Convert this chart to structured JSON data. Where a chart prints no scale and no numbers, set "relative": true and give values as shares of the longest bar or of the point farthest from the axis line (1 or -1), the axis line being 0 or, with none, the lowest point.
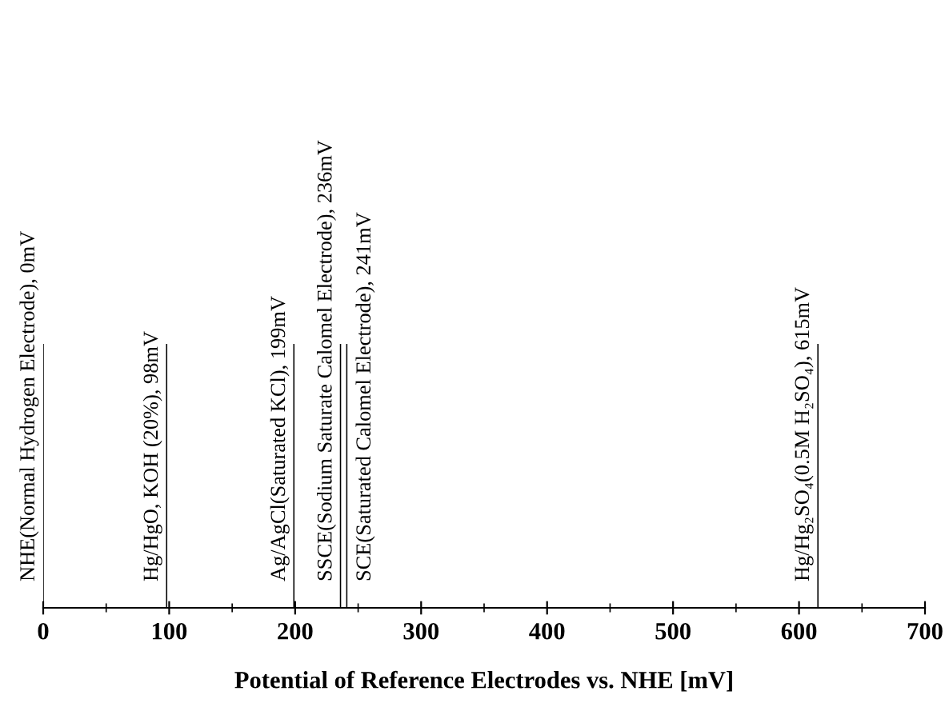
{
  "chart_data": {
    "type": "bar",
    "xlabel": "Potential of Reference Electrodes vs. NHE [mV]",
    "xlim": [
      0,
      700
    ],
    "xticks": [
      0,
      100,
      200,
      300,
      400,
      500,
      600,
      700
    ],
    "x": [
      0,
      98,
      199,
      236,
      241,
      615
    ],
    "values": [
      1,
      1,
      1,
      1,
      1,
      1
    ],
    "relative": true,
    "color": "#000000",
    "annotations": [
      "NHE(Normal Hydrogen Electrode), 0mV",
      "Hg/HgO, KOH (20%), 98mV",
      "Ag/AgCl(Saturated KCl), 199mV",
      "SSCE(Sodium Saturate Calomel Electrode), 236mV",
      "SCE(Saturated Calomel Electrode), 241mV",
      "Hg/Hg₂SO₄(0.5M H₂SO₄), 615mV"
    ]
  }
}
